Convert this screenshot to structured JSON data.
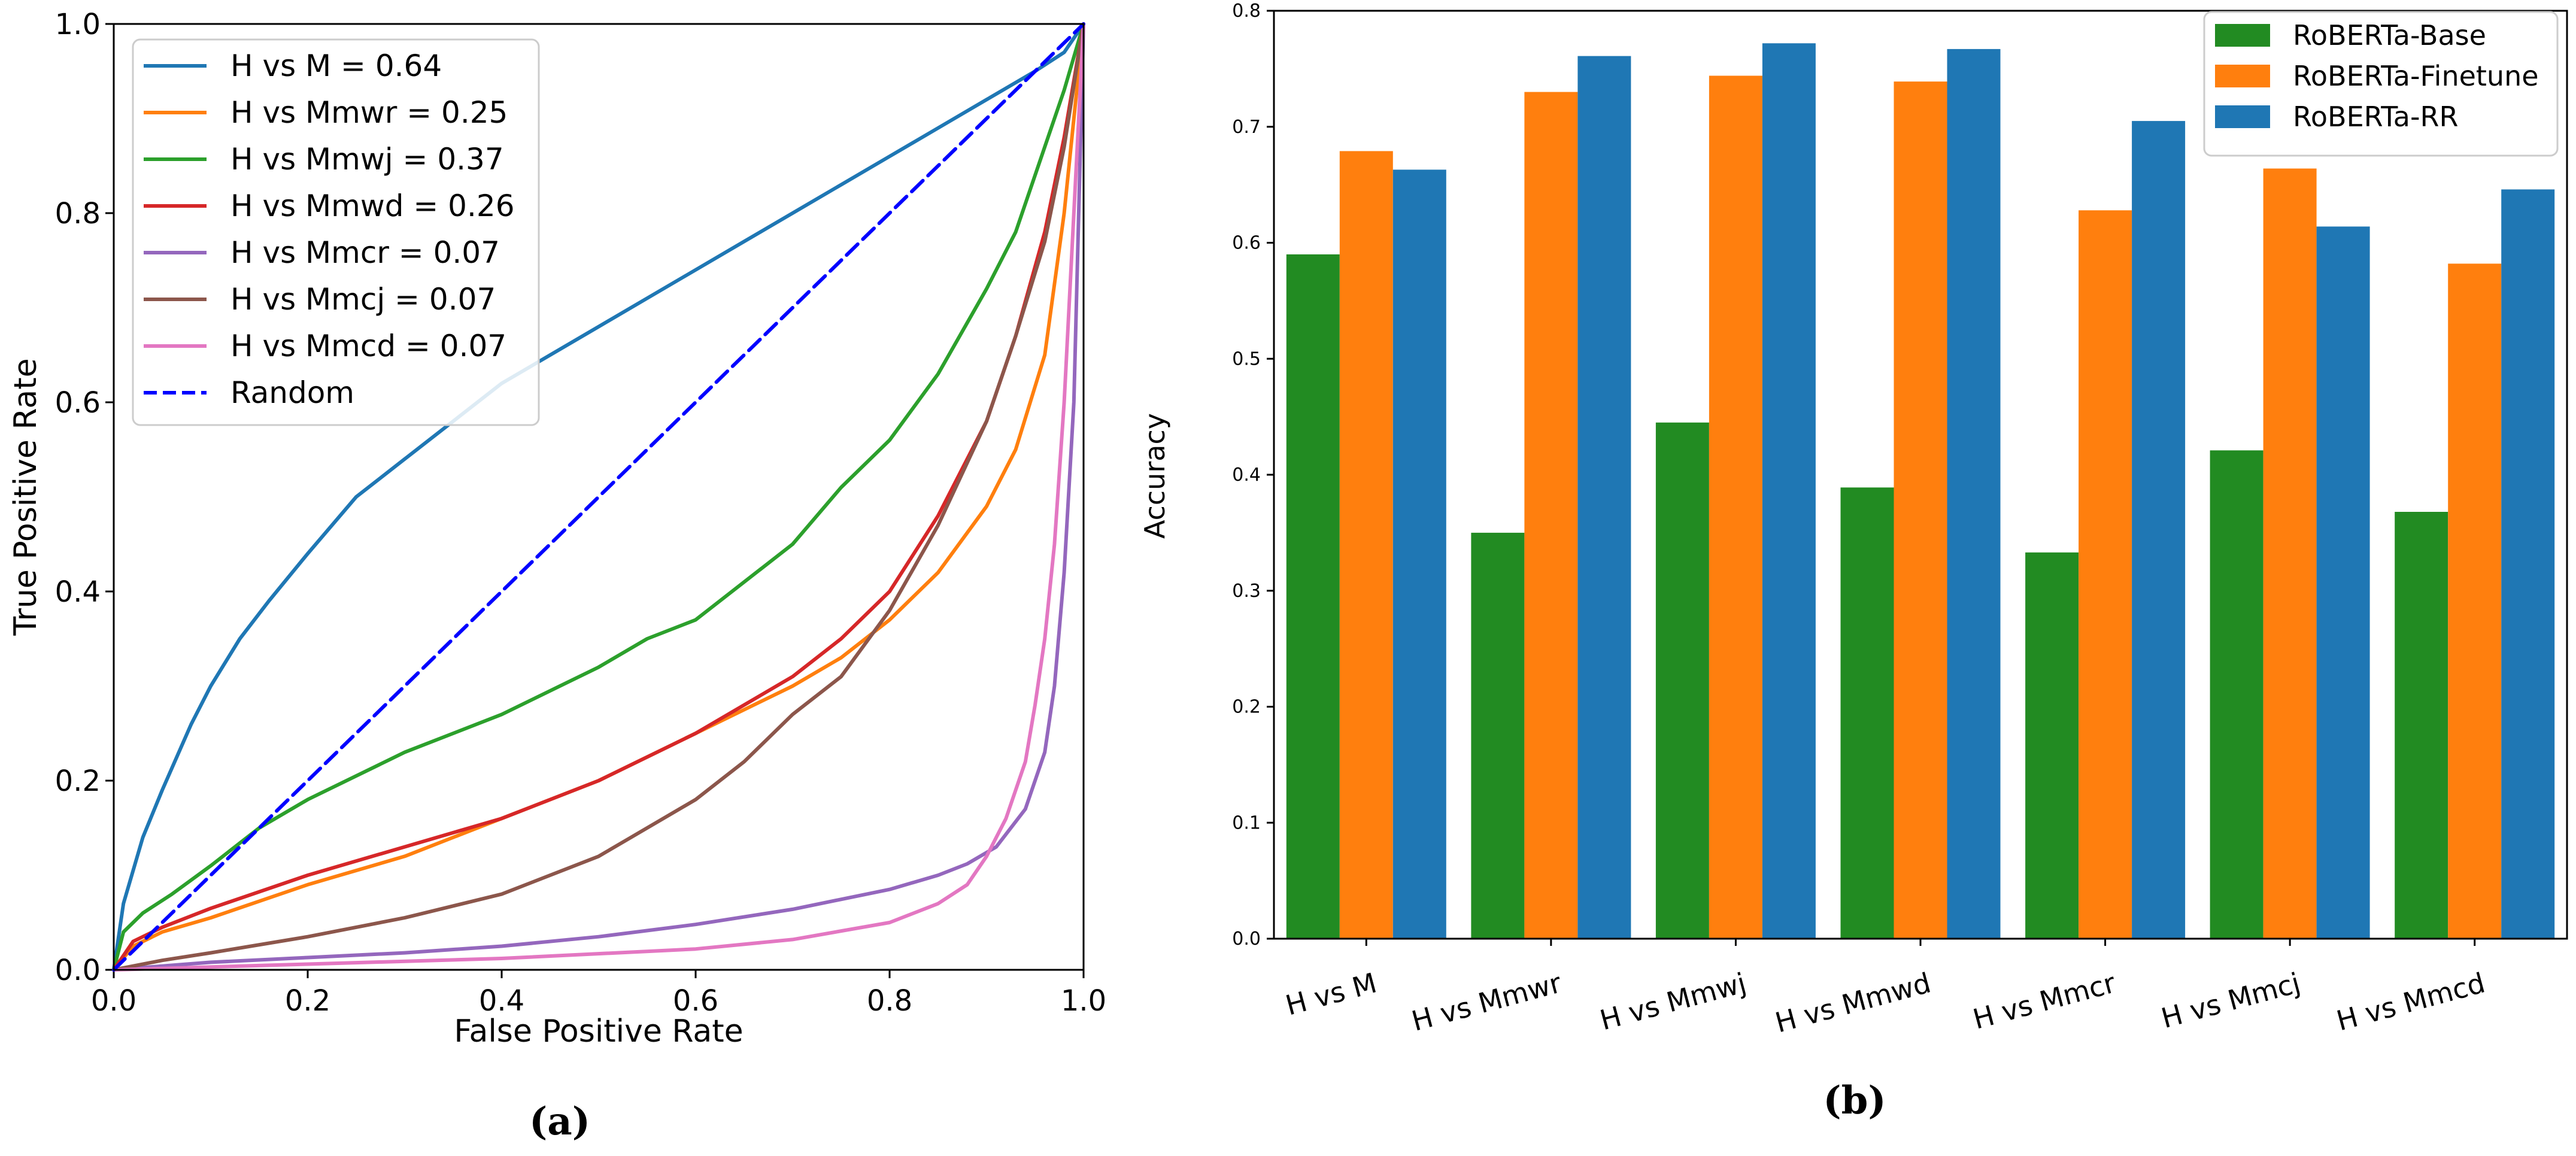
{
  "colors": {
    "blue": "#1f77b4",
    "orange": "#ff7f0e",
    "green": "#2ca02c",
    "red": "#d62728",
    "purple": "#9467bd",
    "brown": "#8c564b",
    "pink": "#e377c2",
    "random": "#0000ff",
    "bar_green": "#228b22"
  },
  "chart_data": [
    {
      "type": "line",
      "panel_label": "(a)",
      "xlabel": "False Positive Rate",
      "ylabel": "True Positive Rate",
      "xlim": [
        0.0,
        1.0
      ],
      "ylim": [
        0.0,
        1.0
      ],
      "xticks": [
        "0.0",
        "0.2",
        "0.4",
        "0.6",
        "0.8",
        "1.0"
      ],
      "yticks": [
        "0.0",
        "0.2",
        "0.4",
        "0.6",
        "0.8",
        "1.0"
      ],
      "legend_position": "top-left",
      "series": [
        {
          "name": "H vs M = 0.64",
          "color": "#1f77b4",
          "dashed": false,
          "x": [
            0,
            0.01,
            0.03,
            0.05,
            0.08,
            0.1,
            0.13,
            0.16,
            0.2,
            0.25,
            0.3,
            0.35,
            0.4,
            0.45,
            0.5,
            0.55,
            0.6,
            0.65,
            0.7,
            0.75,
            0.8,
            0.85,
            0.9,
            0.95,
            0.98,
            1.0
          ],
          "y": [
            0,
            0.07,
            0.14,
            0.19,
            0.26,
            0.3,
            0.35,
            0.39,
            0.44,
            0.5,
            0.54,
            0.58,
            0.62,
            0.65,
            0.68,
            0.71,
            0.74,
            0.77,
            0.8,
            0.83,
            0.86,
            0.89,
            0.92,
            0.95,
            0.97,
            1.0
          ]
        },
        {
          "name": "H vs Mmwr = 0.25",
          "color": "#ff7f0e",
          "dashed": false,
          "x": [
            0,
            0.02,
            0.05,
            0.1,
            0.2,
            0.3,
            0.4,
            0.5,
            0.6,
            0.7,
            0.75,
            0.8,
            0.85,
            0.9,
            0.93,
            0.96,
            0.98,
            1.0
          ],
          "y": [
            0,
            0.025,
            0.04,
            0.055,
            0.09,
            0.12,
            0.16,
            0.2,
            0.25,
            0.3,
            0.33,
            0.37,
            0.42,
            0.49,
            0.55,
            0.65,
            0.8,
            1.0
          ]
        },
        {
          "name": "H vs Mmwj = 0.37",
          "color": "#2ca02c",
          "dashed": false,
          "x": [
            0,
            0.01,
            0.03,
            0.06,
            0.1,
            0.15,
            0.2,
            0.3,
            0.4,
            0.5,
            0.55,
            0.6,
            0.7,
            0.75,
            0.8,
            0.85,
            0.9,
            0.93,
            0.96,
            0.98,
            1.0
          ],
          "y": [
            0,
            0.04,
            0.06,
            0.08,
            0.11,
            0.15,
            0.18,
            0.23,
            0.27,
            0.32,
            0.35,
            0.37,
            0.45,
            0.51,
            0.56,
            0.63,
            0.72,
            0.78,
            0.87,
            0.93,
            1.0
          ]
        },
        {
          "name": "H vs Mmwd = 0.26",
          "color": "#d62728",
          "dashed": false,
          "x": [
            0,
            0.02,
            0.05,
            0.1,
            0.2,
            0.3,
            0.4,
            0.5,
            0.6,
            0.7,
            0.75,
            0.8,
            0.85,
            0.9,
            0.93,
            0.96,
            0.98,
            1.0
          ],
          "y": [
            0,
            0.03,
            0.045,
            0.065,
            0.1,
            0.13,
            0.16,
            0.2,
            0.25,
            0.31,
            0.35,
            0.4,
            0.48,
            0.58,
            0.67,
            0.78,
            0.88,
            1.0
          ]
        },
        {
          "name": "H vs Mmcr = 0.07",
          "color": "#9467bd",
          "dashed": false,
          "x": [
            0,
            0.1,
            0.2,
            0.3,
            0.4,
            0.5,
            0.6,
            0.7,
            0.8,
            0.85,
            0.88,
            0.91,
            0.94,
            0.96,
            0.97,
            0.98,
            0.99,
            1.0
          ],
          "y": [
            0,
            0.008,
            0.013,
            0.018,
            0.025,
            0.035,
            0.048,
            0.064,
            0.085,
            0.1,
            0.112,
            0.13,
            0.17,
            0.23,
            0.3,
            0.42,
            0.6,
            1.0
          ]
        },
        {
          "name": "H vs Mmcj = 0.07",
          "color": "#8c564b",
          "dashed": false,
          "x": [
            0,
            0.05,
            0.1,
            0.2,
            0.3,
            0.4,
            0.5,
            0.6,
            0.65,
            0.7,
            0.75,
            0.8,
            0.85,
            0.9,
            0.93,
            0.96,
            0.98,
            1.0
          ],
          "y": [
            0,
            0.01,
            0.018,
            0.035,
            0.055,
            0.08,
            0.12,
            0.18,
            0.22,
            0.27,
            0.31,
            0.38,
            0.47,
            0.58,
            0.67,
            0.77,
            0.87,
            1.0
          ]
        },
        {
          "name": "H vs Mmcd = 0.07",
          "color": "#e377c2",
          "dashed": false,
          "x": [
            0,
            0.2,
            0.4,
            0.6,
            0.7,
            0.8,
            0.85,
            0.88,
            0.9,
            0.92,
            0.94,
            0.95,
            0.96,
            0.97,
            0.98,
            0.99,
            1.0
          ],
          "y": [
            0,
            0.006,
            0.012,
            0.022,
            0.032,
            0.05,
            0.07,
            0.09,
            0.12,
            0.16,
            0.22,
            0.28,
            0.35,
            0.45,
            0.6,
            0.8,
            1.0
          ]
        },
        {
          "name": "Random",
          "color": "#0000ff",
          "dashed": true,
          "x": [
            0,
            1.0
          ],
          "y": [
            0,
            1.0
          ]
        }
      ]
    },
    {
      "type": "bar",
      "panel_label": "(b)",
      "xlabel": "",
      "ylabel": "Accuracy",
      "ylim": [
        0.0,
        0.8
      ],
      "yticks": [
        "0.0",
        "0.1",
        "0.2",
        "0.3",
        "0.4",
        "0.5",
        "0.6",
        "0.7",
        "0.8"
      ],
      "legend_position": "top-right",
      "categories": [
        "H vs M",
        "H vs Mmwr",
        "H vs Mmwj",
        "H vs Mmwd",
        "H vs Mmcr",
        "H vs Mmcj",
        "H vs Mmcd"
      ],
      "series": [
        {
          "name": "RoBERTa-Base",
          "color": "#228b22",
          "values": [
            0.59,
            0.35,
            0.445,
            0.389,
            0.333,
            0.421,
            0.368
          ]
        },
        {
          "name": "RoBERTa-Finetune",
          "color": "#ff7f0e",
          "values": [
            0.679,
            0.73,
            0.744,
            0.739,
            0.628,
            0.664,
            0.582
          ]
        },
        {
          "name": "RoBERTa-RR",
          "color": "#1f77b4",
          "values": [
            0.663,
            0.761,
            0.772,
            0.767,
            0.705,
            0.614,
            0.646
          ]
        }
      ]
    }
  ]
}
